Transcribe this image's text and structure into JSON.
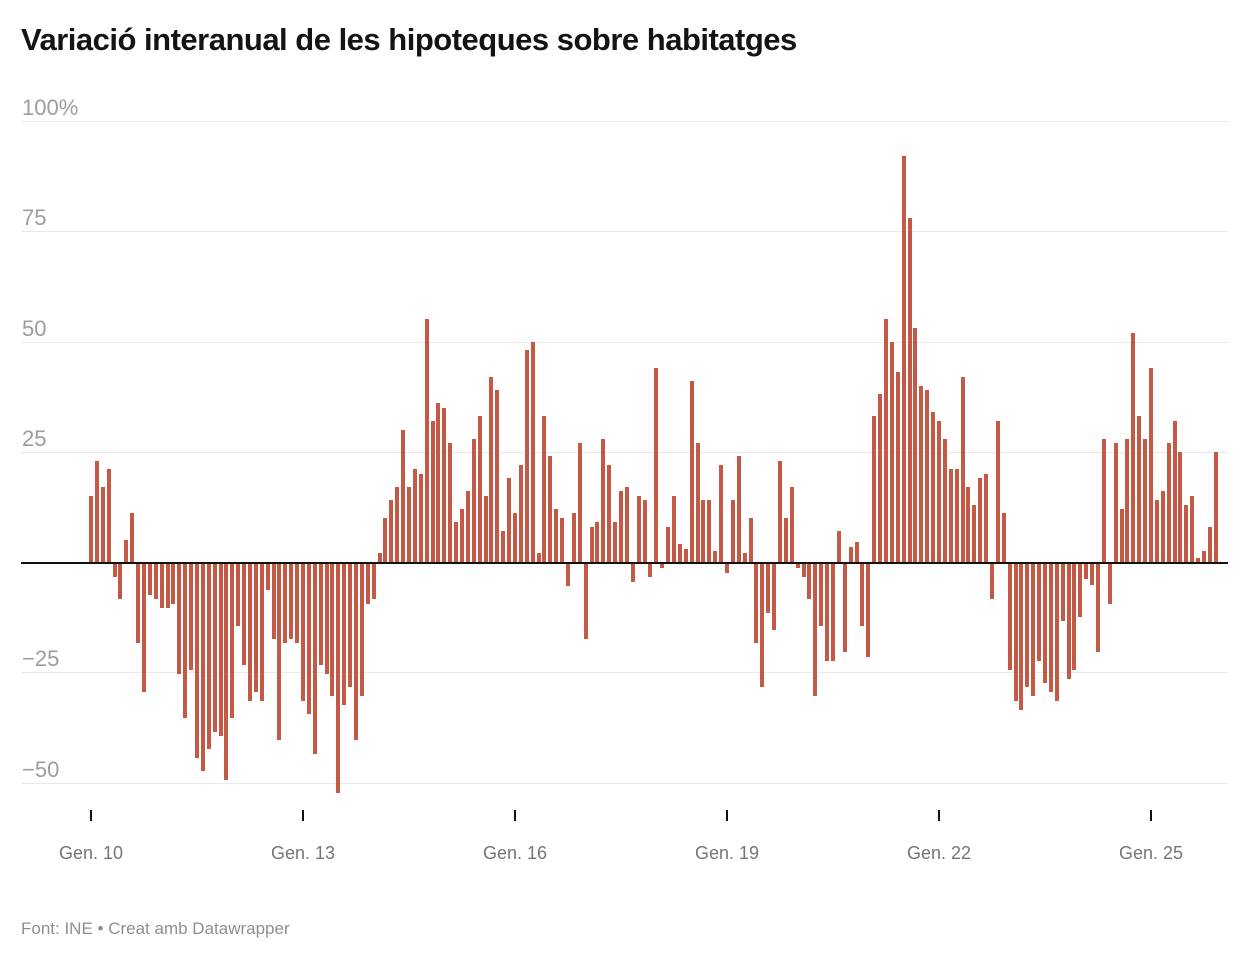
{
  "title": "Variació interanual de les hipoteques sobre habitatges",
  "footer": {
    "text": "Font: INE • Creat amb Datawrapper"
  },
  "colors": {
    "background": "#ffffff",
    "bar": "#c45a45",
    "baseline": "#111111",
    "gridline": "#e9e9e9",
    "title_text": "#141414",
    "y_label": "#9d9d9d",
    "x_label": "#757575",
    "footer_text": "#8f8f8f"
  },
  "chart_data": {
    "type": "bar",
    "title": "Variació interanual de les hipoteques sobre habitatges",
    "xlabel": "",
    "ylabel": "",
    "unit": "%",
    "grid": "horizontal",
    "legend": "none",
    "ylim": [
      -60,
      105
    ],
    "y_ticks": [
      {
        "label": "100%",
        "value": 100
      },
      {
        "label": "75",
        "value": 75
      },
      {
        "label": "50",
        "value": 50
      },
      {
        "label": "25",
        "value": 25
      },
      {
        "label": "−25",
        "value": -25
      },
      {
        "label": "−50",
        "value": -50
      }
    ],
    "x_tick_labels": [
      "Gen. 10",
      "Gen. 13",
      "Gen. 16",
      "Gen. 19",
      "Gen. 22",
      "Gen. 25"
    ],
    "x_tick_indices": [
      0,
      36,
      72,
      108,
      144,
      180
    ],
    "values": [
      15,
      23,
      17,
      21,
      -3,
      -8,
      5,
      11,
      -18,
      -29,
      -7,
      -8,
      -10,
      -10,
      -9,
      -25,
      -35,
      -24,
      -44,
      -47,
      -42,
      -38,
      -39,
      -49,
      -35,
      -14,
      -23,
      -31,
      -29,
      -31,
      -6,
      -17,
      -40,
      -18,
      -17,
      -18,
      -31,
      -34,
      -43,
      -23,
      -25,
      -30,
      -52,
      -32,
      -28,
      -40,
      -30,
      -9,
      -8,
      2,
      10,
      14,
      17,
      30,
      17,
      21,
      20,
      55,
      32,
      36,
      35,
      27,
      9,
      12,
      16,
      28,
      33,
      15,
      42,
      39,
      7,
      19,
      11,
      22,
      48,
      50,
      2,
      33,
      24,
      12,
      10,
      -5,
      11,
      27,
      -17,
      8,
      9,
      28,
      22,
      9,
      16,
      17,
      -4,
      15,
      14,
      -3,
      44,
      -1,
      8,
      15,
      4,
      3,
      41,
      27,
      14,
      14,
      2.5,
      22,
      -2,
      14,
      24,
      2,
      10,
      -18,
      -28,
      -11,
      -15,
      23,
      10,
      17,
      -1,
      -3,
      -8,
      -30,
      -14,
      -22,
      -22,
      7,
      -20,
      3.5,
      4.5,
      -14,
      -21,
      33,
      38,
      55,
      50,
      43,
      92,
      78,
      53,
      40,
      39,
      34,
      32,
      28,
      21,
      21,
      42,
      17,
      13,
      19,
      20,
      -8,
      32,
      11,
      -24,
      -31,
      -33,
      -28,
      -30,
      -22,
      -27,
      -29,
      -31,
      -13,
      -26,
      -24,
      -12,
      -3.5,
      -4.7,
      -20,
      28,
      -9,
      27,
      12,
      28,
      52,
      33,
      28,
      44,
      14,
      16,
      27,
      32,
      25,
      13,
      15,
      1,
      2.5,
      8,
      25
    ]
  }
}
